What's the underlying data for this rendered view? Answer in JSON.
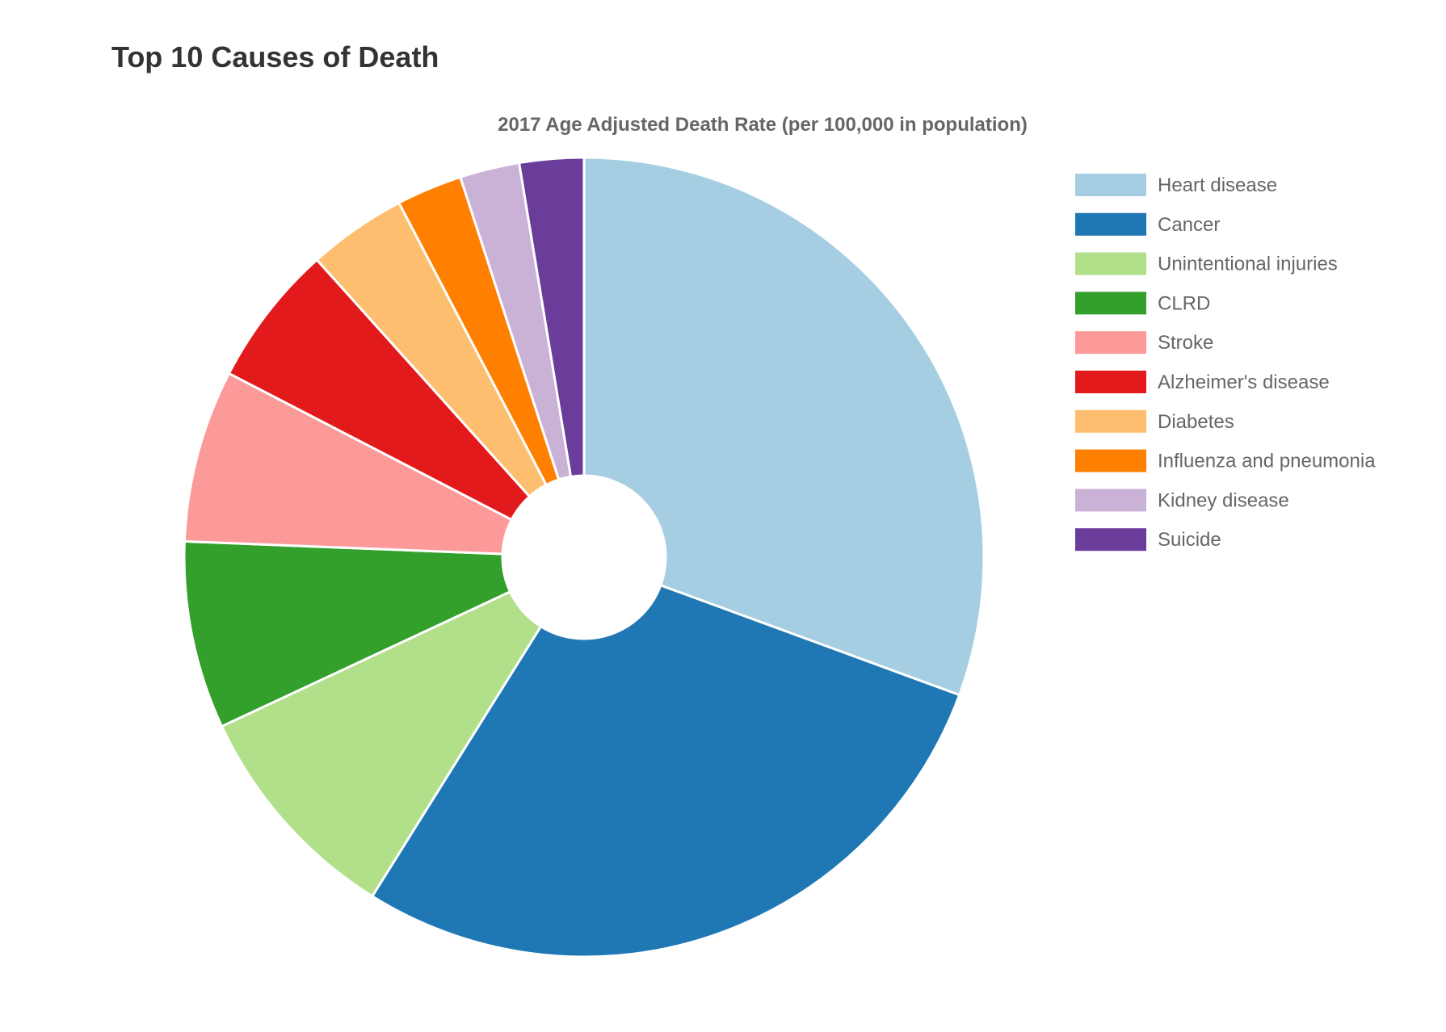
{
  "page": {
    "title": "Top 10 Causes of Death"
  },
  "chart_data": {
    "type": "pie",
    "subtitle": "2017 Age Adjusted Death Rate (per 100,000 in population)",
    "legend_position": "right",
    "categories": [
      "Heart disease",
      "Cancer",
      "Unintentional injuries",
      "CLRD",
      "Stroke",
      "Alzheimer's disease",
      "Diabetes",
      "Influenza and pneumonia",
      "Kidney disease",
      "Suicide"
    ],
    "values": [
      165.0,
      152.5,
      49.4,
      40.9,
      37.6,
      31.0,
      21.5,
      14.3,
      13.0,
      14.0
    ],
    "colors": [
      "#a6cee3",
      "#1f78b4",
      "#b2df8a",
      "#33a02c",
      "#fb9a99",
      "#e31a1c",
      "#fdbf6f",
      "#ff7f00",
      "#cab2d6",
      "#6a3d9a"
    ]
  }
}
